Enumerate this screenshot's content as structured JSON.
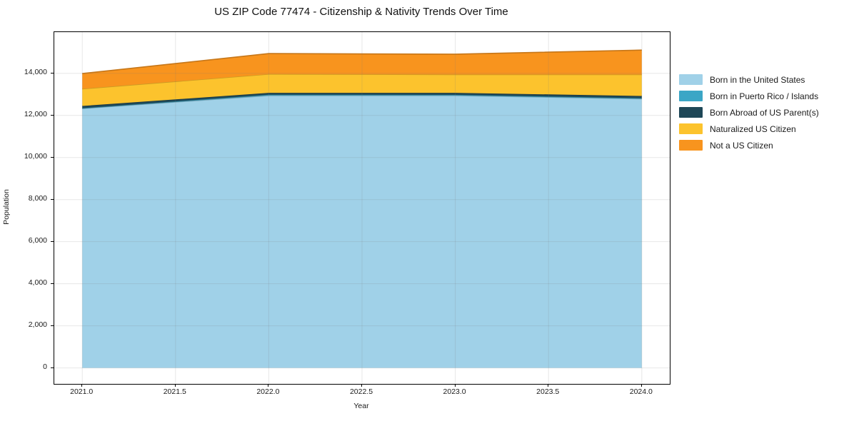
{
  "title": "US ZIP Code 77474 - Citizenship & Nativity Trends Over Time",
  "chart_data": {
    "type": "area",
    "stacked": true,
    "title": "US ZIP Code 77474 - Citizenship & Nativity Trends Over Time",
    "xlabel": "Year",
    "ylabel": "Population",
    "x": [
      2021,
      2022,
      2023,
      2024
    ],
    "series": [
      {
        "name": "Born in the United States",
        "color": "#A0D1E8",
        "values": [
          12330,
          12945,
          12945,
          12790
        ]
      },
      {
        "name": "Born in Puerto Rico / Islands",
        "color": "#3BA6C6",
        "values": [
          15,
          40,
          35,
          30
        ]
      },
      {
        "name": "Born Abroad of US Parent(s)",
        "color": "#1E4757",
        "values": [
          105,
          90,
          95,
          105
        ]
      },
      {
        "name": "Naturalized US Citizen",
        "color": "#FCC32D",
        "values": [
          815,
          890,
          870,
          1020
        ]
      },
      {
        "name": "Not a US Citizen",
        "color": "#F8941E",
        "values": [
          725,
          975,
          965,
          1160
        ]
      }
    ],
    "stack_totals": [
      13990,
      14940,
      14910,
      15105
    ],
    "xlim": [
      2020.85,
      2024.15
    ],
    "ylim": [
      -760,
      15960
    ],
    "xticks": [
      2021.0,
      2021.5,
      2022.0,
      2022.5,
      2023.0,
      2023.5,
      2024.0
    ],
    "yticks": [
      0,
      2000,
      4000,
      6000,
      8000,
      10000,
      12000,
      14000
    ],
    "grid": true,
    "gridline_color": "#e3e3e3",
    "legend_position": "outside-right",
    "background_color": "#ffffff",
    "spine_color": "#000000"
  }
}
